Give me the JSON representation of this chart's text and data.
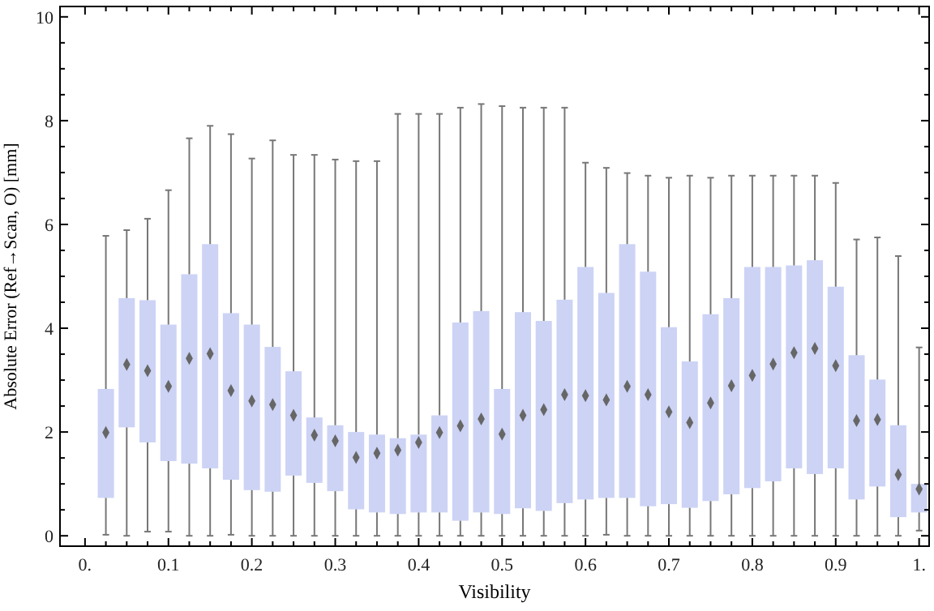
{
  "chart_data": {
    "type": "box",
    "xlabel": "Visibility",
    "ylabel": "Absolute Error (Ref→Scan, O) [mm]",
    "color": "#ccd3f5",
    "marker": "diamond",
    "x": [
      0.025,
      0.05,
      0.075,
      0.1,
      0.125,
      0.15,
      0.175,
      0.2,
      0.225,
      0.25,
      0.275,
      0.3,
      0.325,
      0.35,
      0.375,
      0.4,
      0.425,
      0.45,
      0.475,
      0.5,
      0.525,
      0.55,
      0.575,
      0.6,
      0.625,
      0.65,
      0.675,
      0.7,
      0.725,
      0.75,
      0.775,
      0.8,
      0.825,
      0.85,
      0.875,
      0.9,
      0.925,
      0.95,
      0.975,
      1.0
    ],
    "boxes": [
      {
        "low": 0.02,
        "q1": 0.73,
        "median": 1.99,
        "q3": 2.83,
        "high": 5.78
      },
      {
        "low": 0,
        "q1": 2.09,
        "median": 3.3,
        "q3": 4.58,
        "high": 5.89
      },
      {
        "low": 0.08,
        "q1": 1.8,
        "median": 3.18,
        "q3": 4.54,
        "high": 6.11
      },
      {
        "low": 0.08,
        "q1": 1.44,
        "median": 2.88,
        "q3": 4.07,
        "high": 6.66
      },
      {
        "low": 0,
        "q1": 1.39,
        "median": 3.42,
        "q3": 5.04,
        "high": 7.66
      },
      {
        "low": 0,
        "q1": 1.3,
        "median": 3.51,
        "q3": 5.62,
        "high": 7.9
      },
      {
        "low": 0.02,
        "q1": 1.08,
        "median": 2.8,
        "q3": 4.29,
        "high": 7.74
      },
      {
        "low": 0,
        "q1": 0.88,
        "median": 2.6,
        "q3": 4.07,
        "high": 7.27
      },
      {
        "low": 0,
        "q1": 0.85,
        "median": 2.53,
        "q3": 3.64,
        "high": 7.62
      },
      {
        "low": 0,
        "q1": 1.16,
        "median": 2.32,
        "q3": 3.17,
        "high": 7.34
      },
      {
        "low": 0,
        "q1": 1.02,
        "median": 1.94,
        "q3": 2.28,
        "high": 7.34
      },
      {
        "low": 0,
        "q1": 0.86,
        "median": 1.83,
        "q3": 2.13,
        "high": 7.25
      },
      {
        "low": 0,
        "q1": 0.51,
        "median": 1.51,
        "q3": 2.0,
        "high": 7.22
      },
      {
        "low": 0,
        "q1": 0.45,
        "median": 1.59,
        "q3": 1.95,
        "high": 7.22
      },
      {
        "low": 0,
        "q1": 0.42,
        "median": 1.65,
        "q3": 1.88,
        "high": 8.13
      },
      {
        "low": 0,
        "q1": 0.45,
        "median": 1.8,
        "q3": 1.95,
        "high": 8.13
      },
      {
        "low": 0,
        "q1": 0.45,
        "median": 1.99,
        "q3": 2.32,
        "high": 8.13
      },
      {
        "low": 0,
        "q1": 0.29,
        "median": 2.12,
        "q3": 4.11,
        "high": 8.25
      },
      {
        "low": 0,
        "q1": 0.45,
        "median": 2.25,
        "q3": 4.33,
        "high": 8.32
      },
      {
        "low": 0,
        "q1": 0.42,
        "median": 1.96,
        "q3": 2.83,
        "high": 8.28
      },
      {
        "low": 0,
        "q1": 0.53,
        "median": 2.32,
        "q3": 4.31,
        "high": 8.25
      },
      {
        "low": 0,
        "q1": 0.48,
        "median": 2.43,
        "q3": 4.14,
        "high": 8.25
      },
      {
        "low": 0,
        "q1": 0.63,
        "median": 2.72,
        "q3": 4.55,
        "high": 8.25
      },
      {
        "low": 0,
        "q1": 0.7,
        "median": 2.7,
        "q3": 5.18,
        "high": 7.19
      },
      {
        "low": 0.02,
        "q1": 0.73,
        "median": 2.62,
        "q3": 4.68,
        "high": 7.09
      },
      {
        "low": 0,
        "q1": 0.73,
        "median": 2.88,
        "q3": 5.62,
        "high": 6.99
      },
      {
        "low": 0,
        "q1": 0.57,
        "median": 2.72,
        "q3": 5.09,
        "high": 6.94
      },
      {
        "low": 0,
        "q1": 0.61,
        "median": 2.39,
        "q3": 4.02,
        "high": 6.9
      },
      {
        "low": 0,
        "q1": 0.54,
        "median": 2.18,
        "q3": 3.36,
        "high": 6.94
      },
      {
        "low": 0,
        "q1": 0.67,
        "median": 2.56,
        "q3": 4.27,
        "high": 6.9
      },
      {
        "low": 0,
        "q1": 0.8,
        "median": 2.89,
        "q3": 4.58,
        "high": 6.94
      },
      {
        "low": 0,
        "q1": 0.92,
        "median": 3.09,
        "q3": 5.18,
        "high": 6.94
      },
      {
        "low": 0,
        "q1": 1.05,
        "median": 3.31,
        "q3": 5.18,
        "high": 6.94
      },
      {
        "low": 0,
        "q1": 1.3,
        "median": 3.53,
        "q3": 5.21,
        "high": 6.94
      },
      {
        "low": 0,
        "q1": 1.19,
        "median": 3.61,
        "q3": 5.31,
        "high": 6.94
      },
      {
        "low": 0,
        "q1": 1.3,
        "median": 3.28,
        "q3": 4.8,
        "high": 6.8
      },
      {
        "low": 0,
        "q1": 0.7,
        "median": 2.22,
        "q3": 3.48,
        "high": 5.71
      },
      {
        "low": 0,
        "q1": 0.95,
        "median": 2.24,
        "q3": 3.01,
        "high": 5.75
      },
      {
        "low": 0,
        "q1": 0.36,
        "median": 1.18,
        "q3": 2.13,
        "high": 5.39
      },
      {
        "low": 0.1,
        "q1": 0.45,
        "median": 0.9,
        "q3": 1.0,
        "high": 3.63
      }
    ],
    "xlim": [
      -0.03,
      1.012
    ],
    "xticks": [
      {
        "value": 0,
        "label": "0."
      },
      {
        "value": 0.025,
        "label": null
      },
      {
        "value": 0.05,
        "label": null
      },
      {
        "value": 0.075,
        "label": null
      },
      0.1,
      {
        "value": 0.125,
        "label": null
      },
      {
        "value": 0.15,
        "label": null
      },
      {
        "value": 0.175,
        "label": null
      },
      0.2,
      {
        "value": 0.225,
        "label": null
      },
      {
        "value": 0.25,
        "label": null
      },
      {
        "value": 0.275,
        "label": null
      },
      0.3,
      {
        "value": 0.325,
        "label": null
      },
      {
        "value": 0.35,
        "label": null
      },
      {
        "value": 0.375,
        "label": null
      },
      0.4,
      {
        "value": 0.425,
        "label": null
      },
      {
        "value": 0.45,
        "label": null
      },
      {
        "value": 0.475,
        "label": null
      },
      0.5,
      {
        "value": 0.525,
        "label": null
      },
      {
        "value": 0.55,
        "label": null
      },
      {
        "value": 0.575,
        "label": null
      },
      0.6,
      {
        "value": 0.625,
        "label": null
      },
      {
        "value": 0.65,
        "label": null
      },
      {
        "value": 0.675,
        "label": null
      },
      0.7,
      {
        "value": 0.725,
        "label": null
      },
      {
        "value": 0.75,
        "label": null
      },
      {
        "value": 0.775,
        "label": null
      },
      0.8,
      {
        "value": 0.825,
        "label": null
      },
      {
        "value": 0.85,
        "label": null
      },
      {
        "value": 0.875,
        "label": null
      },
      0.9,
      {
        "value": 0.925,
        "label": null
      },
      {
        "value": 0.95,
        "label": null
      },
      {
        "value": 0.975,
        "label": null
      },
      {
        "value": 1.0,
        "label": "1."
      }
    ],
    "ylim": [
      -0.2,
      10.2
    ],
    "yticks": [
      0,
      {
        "value": 0.5,
        "label": null
      },
      {
        "value": 1,
        "label": null
      },
      {
        "value": 1.5,
        "label": null
      },
      2,
      {
        "value": 2.5,
        "label": null
      },
      {
        "value": 3,
        "label": null
      },
      {
        "value": 3.5,
        "label": null
      },
      4,
      {
        "value": 4.5,
        "label": null
      },
      {
        "value": 5,
        "label": null
      },
      {
        "value": 5.5,
        "label": null
      },
      6,
      {
        "value": 6.5,
        "label": null
      },
      {
        "value": 7,
        "label": null
      },
      {
        "value": 7.5,
        "label": null
      },
      8,
      {
        "value": 8.5,
        "label": null
      },
      {
        "value": 9,
        "label": null
      },
      {
        "value": 9.5,
        "label": null
      },
      10
    ]
  }
}
